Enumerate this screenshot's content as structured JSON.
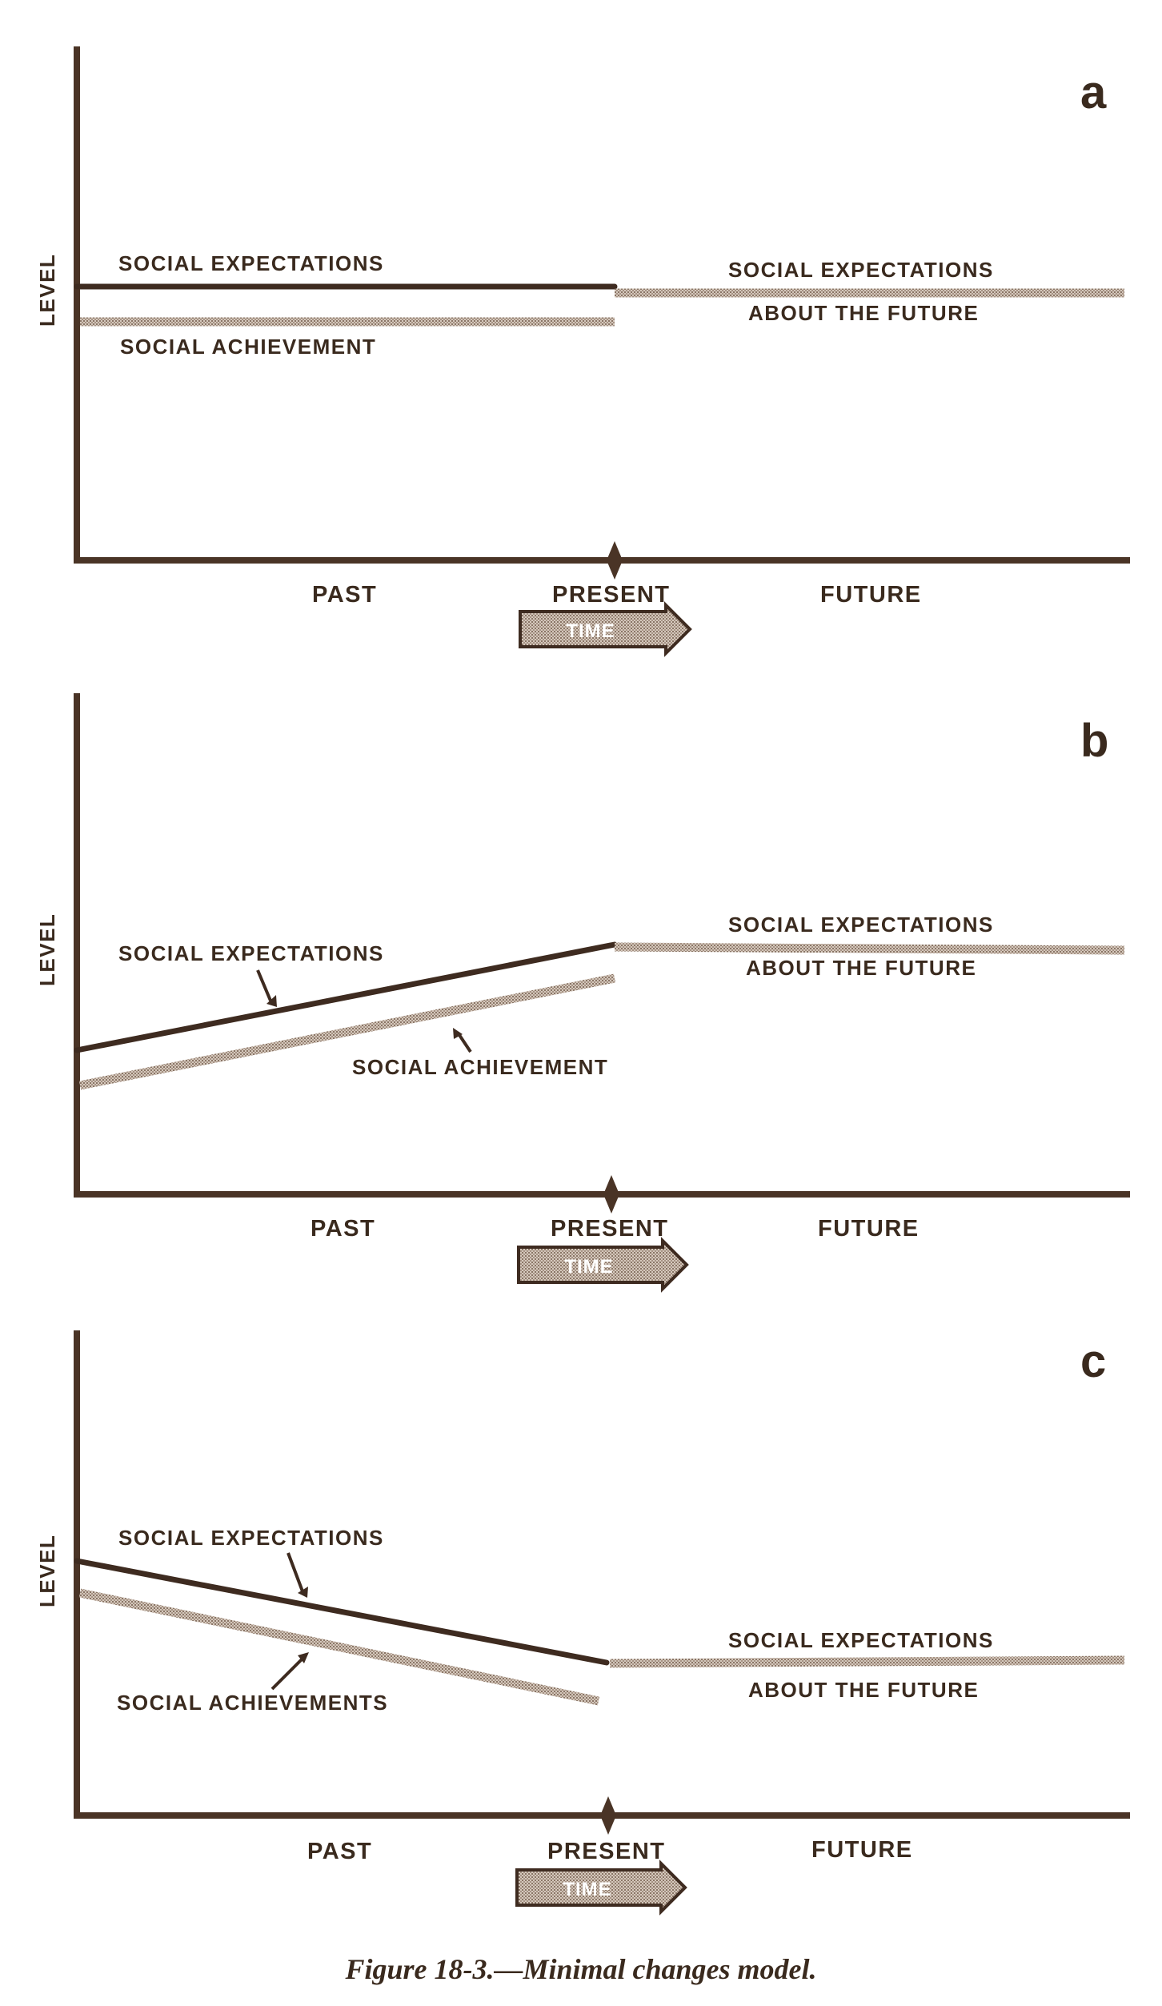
{
  "figure": {
    "caption": "Figure 18-3.—Minimal changes model.",
    "axis": {
      "y_label": "LEVEL",
      "past": "PAST",
      "present": "PRESENT",
      "future": "FUTURE",
      "time": "TIME"
    },
    "panels": [
      {
        "letter": "a",
        "expectations_label": "SOCIAL EXPECTATIONS",
        "achievement_label": "SOCIAL ACHIEVEMENT",
        "future_label_1": "SOCIAL EXPECTATIONS",
        "future_label_2": "ABOUT THE FUTURE"
      },
      {
        "letter": "b",
        "expectations_label": "SOCIAL EXPECTATIONS",
        "achievement_label": "SOCIAL ACHIEVEMENT",
        "future_label_1": "SOCIAL EXPECTATIONS",
        "future_label_2": "ABOUT THE FUTURE"
      },
      {
        "letter": "c",
        "expectations_label": "SOCIAL EXPECTATIONS",
        "achievement_label": "SOCIAL ACHIEVEMENTS",
        "future_label_1": "SOCIAL EXPECTATIONS",
        "future_label_2": "ABOUT THE FUTURE"
      }
    ]
  }
}
